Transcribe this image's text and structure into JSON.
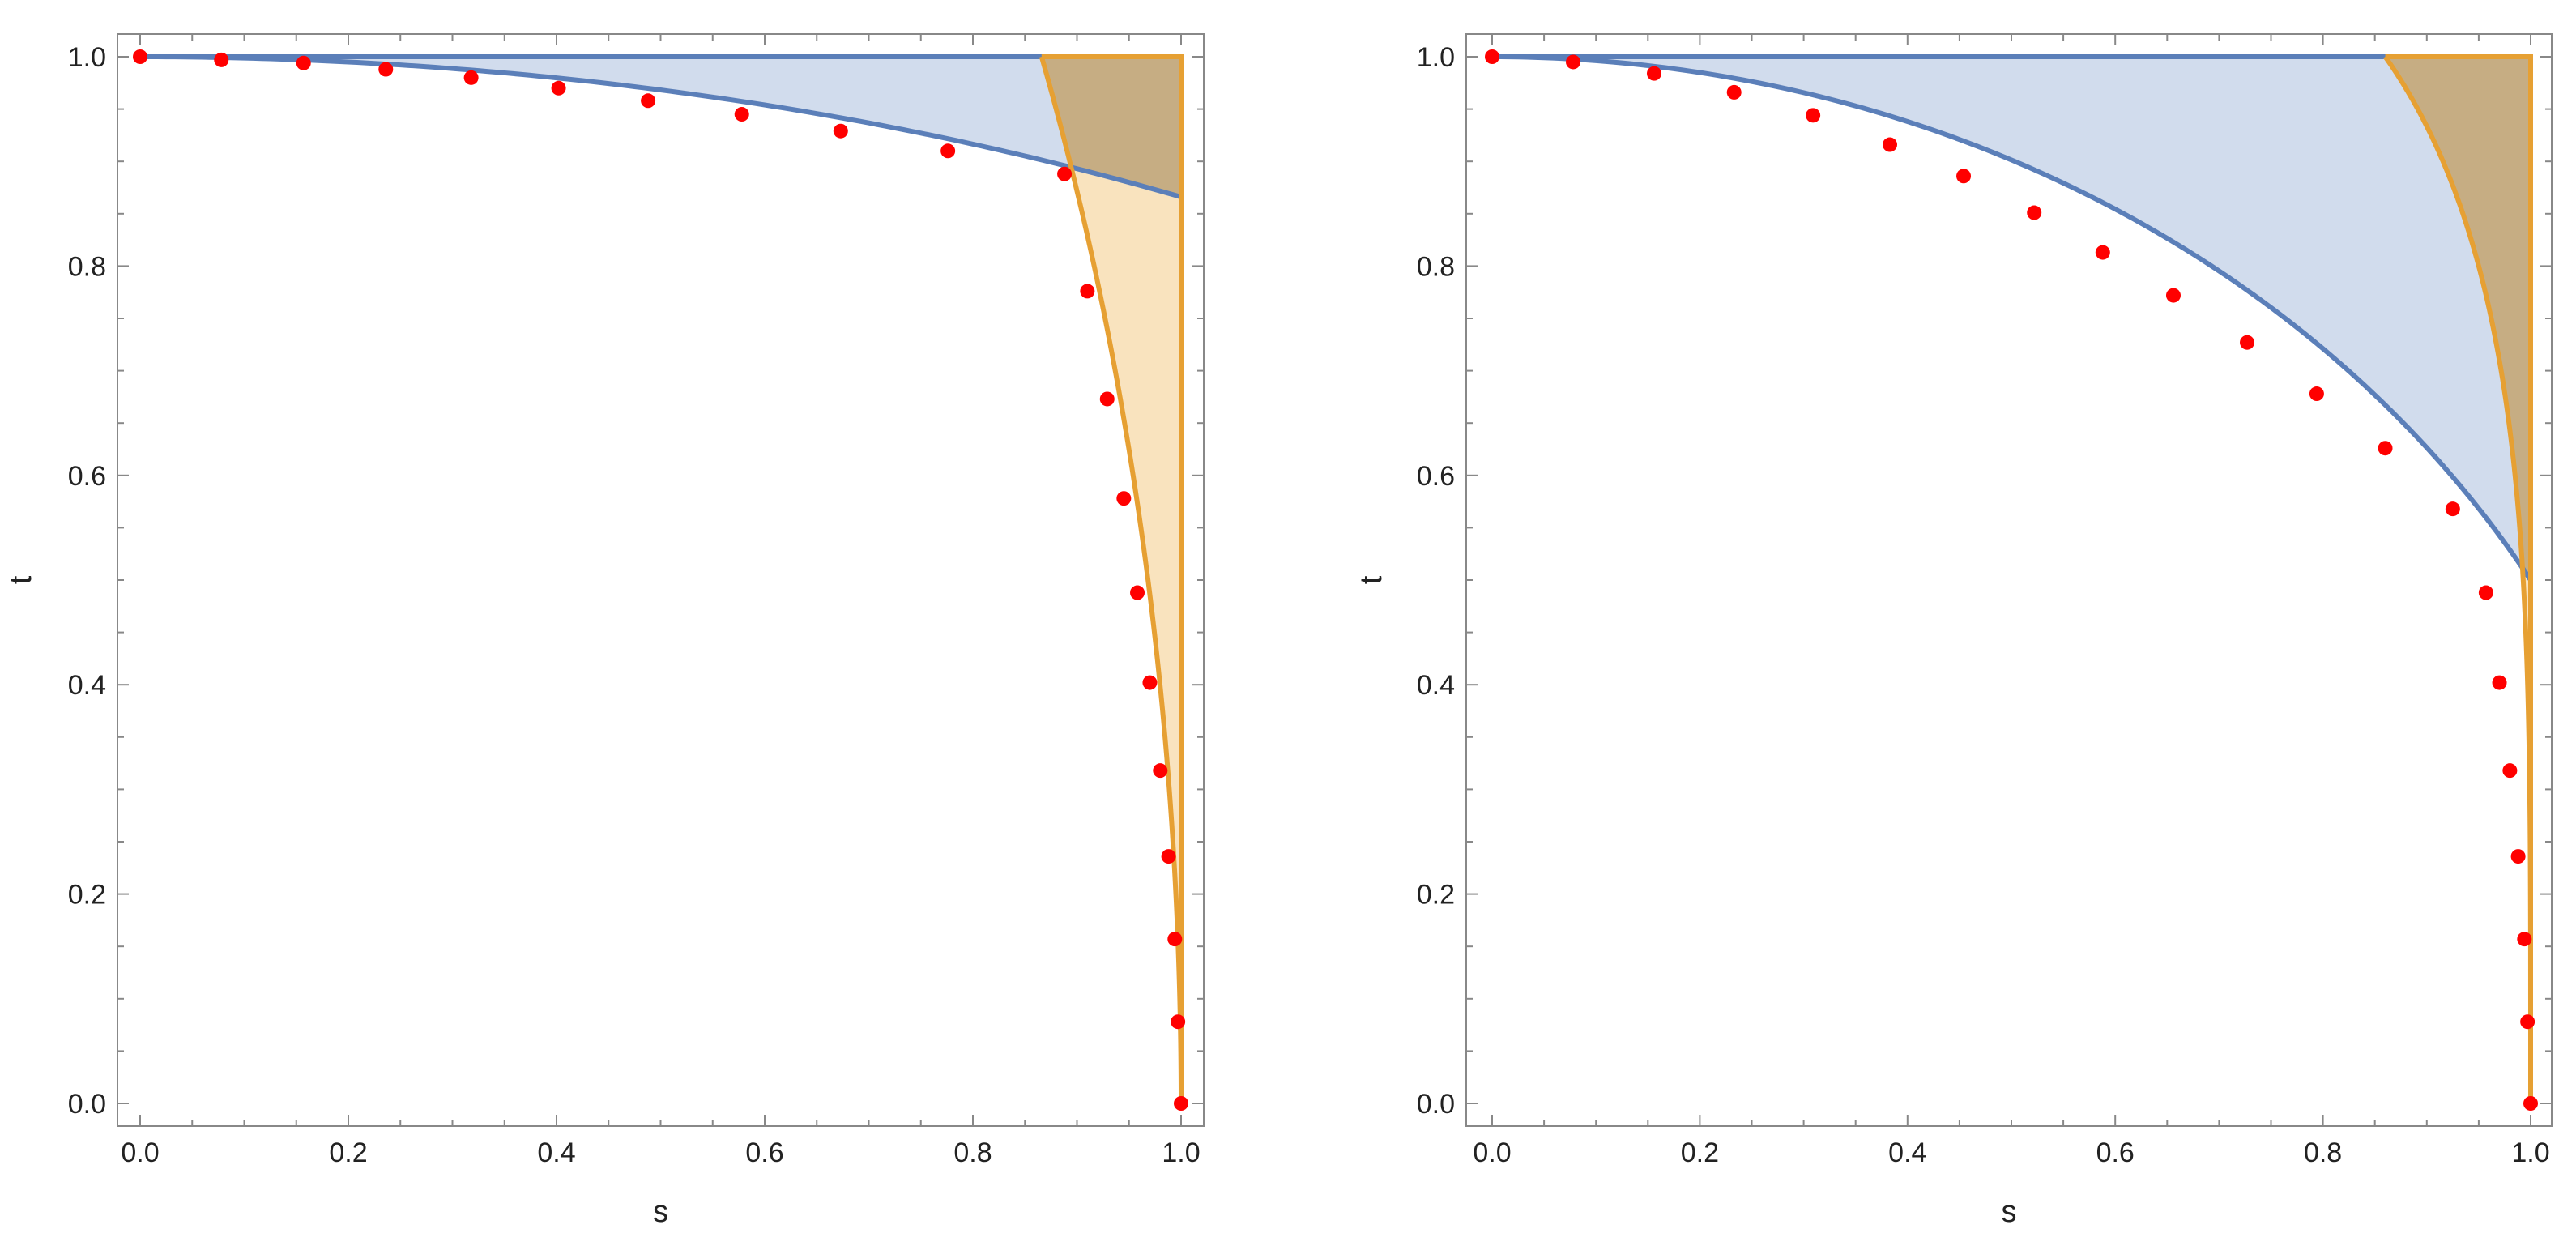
{
  "colors": {
    "blue_line": "#5b7fb9",
    "blue_fill": "#c9d6ea",
    "orange_line": "#e6a033",
    "orange_fill": "#f7dcae",
    "overlap_fill": "#b89d70",
    "points": "#ff0000",
    "frame": "#888888"
  },
  "chart_data": [
    {
      "type": "scatter",
      "xlabel": "s",
      "ylabel": "t",
      "xlim": [
        0,
        1
      ],
      "ylim": [
        0,
        1
      ],
      "xticks": [
        "0.0",
        "0.2",
        "0.4",
        "0.6",
        "0.8",
        "1.0"
      ],
      "yticks": [
        "0.0",
        "0.2",
        "0.4",
        "0.6",
        "0.8",
        "1.0"
      ],
      "points": [
        [
          0.0,
          1.0
        ],
        [
          0.078,
          0.997
        ],
        [
          0.157,
          0.994
        ],
        [
          0.236,
          0.988
        ],
        [
          0.318,
          0.98
        ],
        [
          0.402,
          0.97
        ],
        [
          0.488,
          0.958
        ],
        [
          0.578,
          0.945
        ],
        [
          0.673,
          0.929
        ],
        [
          0.776,
          0.91
        ],
        [
          0.888,
          0.888
        ],
        [
          0.91,
          0.776
        ],
        [
          0.929,
          0.673
        ],
        [
          0.945,
          0.578
        ],
        [
          0.958,
          0.488
        ],
        [
          0.97,
          0.402
        ],
        [
          0.98,
          0.318
        ],
        [
          0.988,
          0.236
        ],
        [
          0.994,
          0.157
        ],
        [
          0.997,
          0.078
        ],
        [
          1.0,
          0.0
        ]
      ],
      "blue_curve": {
        "exponent": 2,
        "end_t": 0.866
      },
      "orange_curve": {
        "exponent": 2,
        "end_s": 0.866
      }
    },
    {
      "type": "scatter",
      "xlabel": "s",
      "ylabel": "t",
      "xlim": [
        0,
        1
      ],
      "ylim": [
        0,
        1
      ],
      "xticks": [
        "0.0",
        "0.2",
        "0.4",
        "0.6",
        "0.8",
        "1.0"
      ],
      "yticks": [
        "0.0",
        "0.2",
        "0.4",
        "0.6",
        "0.8",
        "1.0"
      ],
      "points": [
        [
          0.0,
          1.0
        ],
        [
          0.078,
          0.995
        ],
        [
          0.156,
          0.984
        ],
        [
          0.233,
          0.966
        ],
        [
          0.309,
          0.944
        ],
        [
          0.383,
          0.916
        ],
        [
          0.454,
          0.886
        ],
        [
          0.522,
          0.851
        ],
        [
          0.588,
          0.813
        ],
        [
          0.656,
          0.772
        ],
        [
          0.727,
          0.727
        ],
        [
          0.794,
          0.678
        ],
        [
          0.86,
          0.626
        ],
        [
          0.925,
          0.568
        ],
        [
          0.957,
          0.488
        ],
        [
          0.97,
          0.402
        ],
        [
          0.98,
          0.318
        ],
        [
          0.988,
          0.236
        ],
        [
          0.994,
          0.157
        ],
        [
          0.997,
          0.078
        ],
        [
          1.0,
          0.0
        ]
      ],
      "blue_curve": {
        "exponent": 2,
        "end_t": 0.5
      },
      "orange_curve": {
        "exponent": 4,
        "end_s": 0.86
      }
    }
  ]
}
